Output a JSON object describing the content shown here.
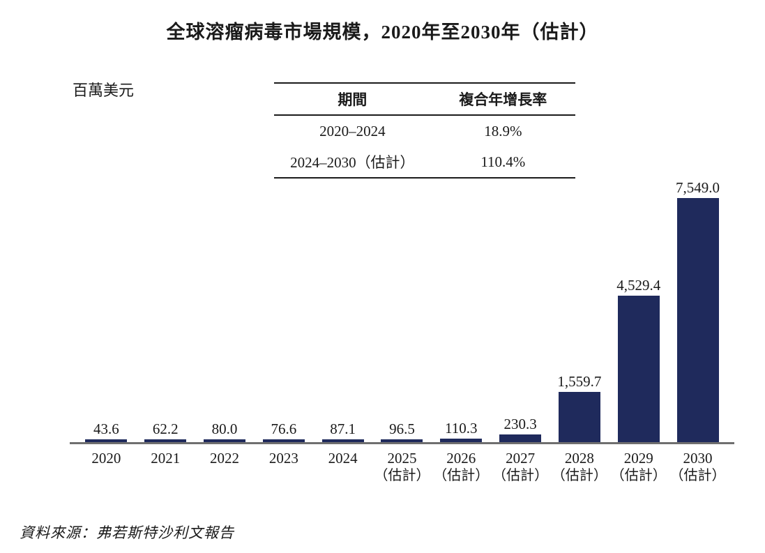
{
  "chart_data": {
    "type": "bar",
    "title": "全球溶瘤病毒市場規模，2020年至2030年（估計）",
    "unit_label": "百萬美元",
    "categories": [
      "2020",
      "2021",
      "2022",
      "2023",
      "2024",
      "2025",
      "2026",
      "2027",
      "2028",
      "2029",
      "2030"
    ],
    "sublabels": [
      "",
      "",
      "",
      "",
      "",
      "（估計）",
      "（估計）",
      "（估計）",
      "（估計）",
      "（估計）",
      "（估計）"
    ],
    "values": [
      43.6,
      62.2,
      80.0,
      76.6,
      87.1,
      96.5,
      110.3,
      230.3,
      1559.7,
      4529.4,
      7549.0
    ],
    "value_labels": [
      "43.6",
      "62.2",
      "80.0",
      "76.6",
      "87.1",
      "96.5",
      "110.3",
      "230.3",
      "1,559.7",
      "4,529.4",
      "7,549.0"
    ],
    "ylim": [
      0,
      7549
    ],
    "grid": false,
    "legend": "none",
    "bar_color": "#1f2a5c",
    "baseline_color": "#6f6f6f",
    "cagr_table": {
      "headers": [
        "期間",
        "複合年增長率"
      ],
      "rows": [
        [
          "2020–2024",
          "18.9%"
        ],
        [
          "2024–2030（估計）",
          "110.4%"
        ]
      ]
    },
    "source": "資料來源：弗若斯特沙利文報告"
  }
}
